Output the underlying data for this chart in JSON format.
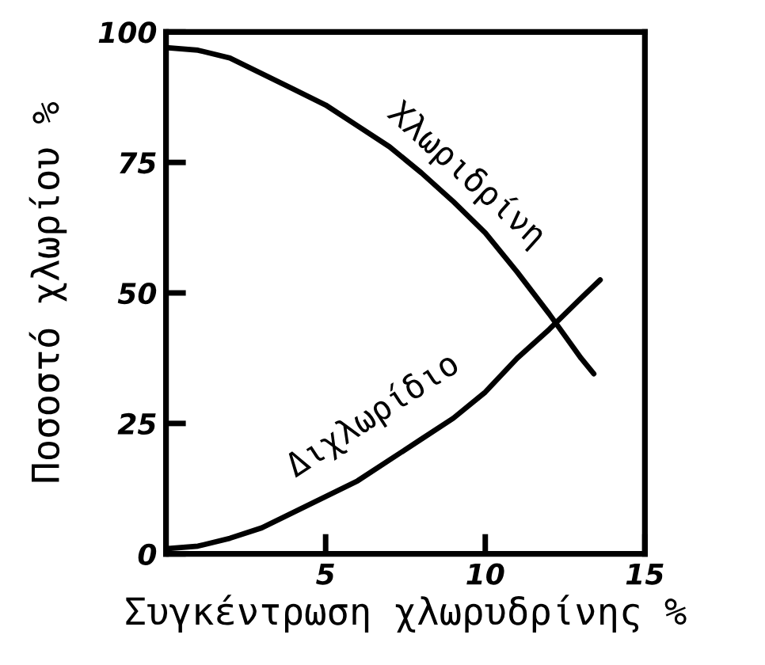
{
  "chart_data": {
    "type": "line",
    "xlabel": "Συγκέντρωση χλωρυδρίνης %",
    "ylabel": "Ποσοστό χλωρίου %",
    "xlim": [
      0,
      15
    ],
    "xticks": [
      5,
      10,
      15
    ],
    "ylim": [
      0,
      100
    ],
    "yticks": [
      0,
      25,
      50,
      75,
      100
    ],
    "grid": false,
    "legend": false,
    "marker": "none",
    "line_style": "solid",
    "series": [
      {
        "name": "Χλωριδρίνη",
        "color": "#000000",
        "x": [
          0,
          1,
          2,
          3,
          4,
          5,
          6,
          7,
          8,
          9,
          10,
          11,
          12,
          13,
          13.4
        ],
        "values": [
          97,
          96.5,
          95,
          92,
          89,
          86,
          82,
          78,
          73,
          67.5,
          61.5,
          54,
          46,
          37.5,
          34.5
        ]
      },
      {
        "name": "Διχλωρίδιο",
        "color": "#000000",
        "x": [
          0,
          1,
          2,
          3,
          4,
          5,
          6,
          7,
          8,
          9,
          10,
          11,
          12,
          13,
          13.6
        ],
        "values": [
          1,
          1.5,
          3,
          5,
          8,
          11,
          14,
          18,
          22,
          26,
          31,
          37.5,
          43,
          49,
          52.5
        ]
      }
    ]
  }
}
